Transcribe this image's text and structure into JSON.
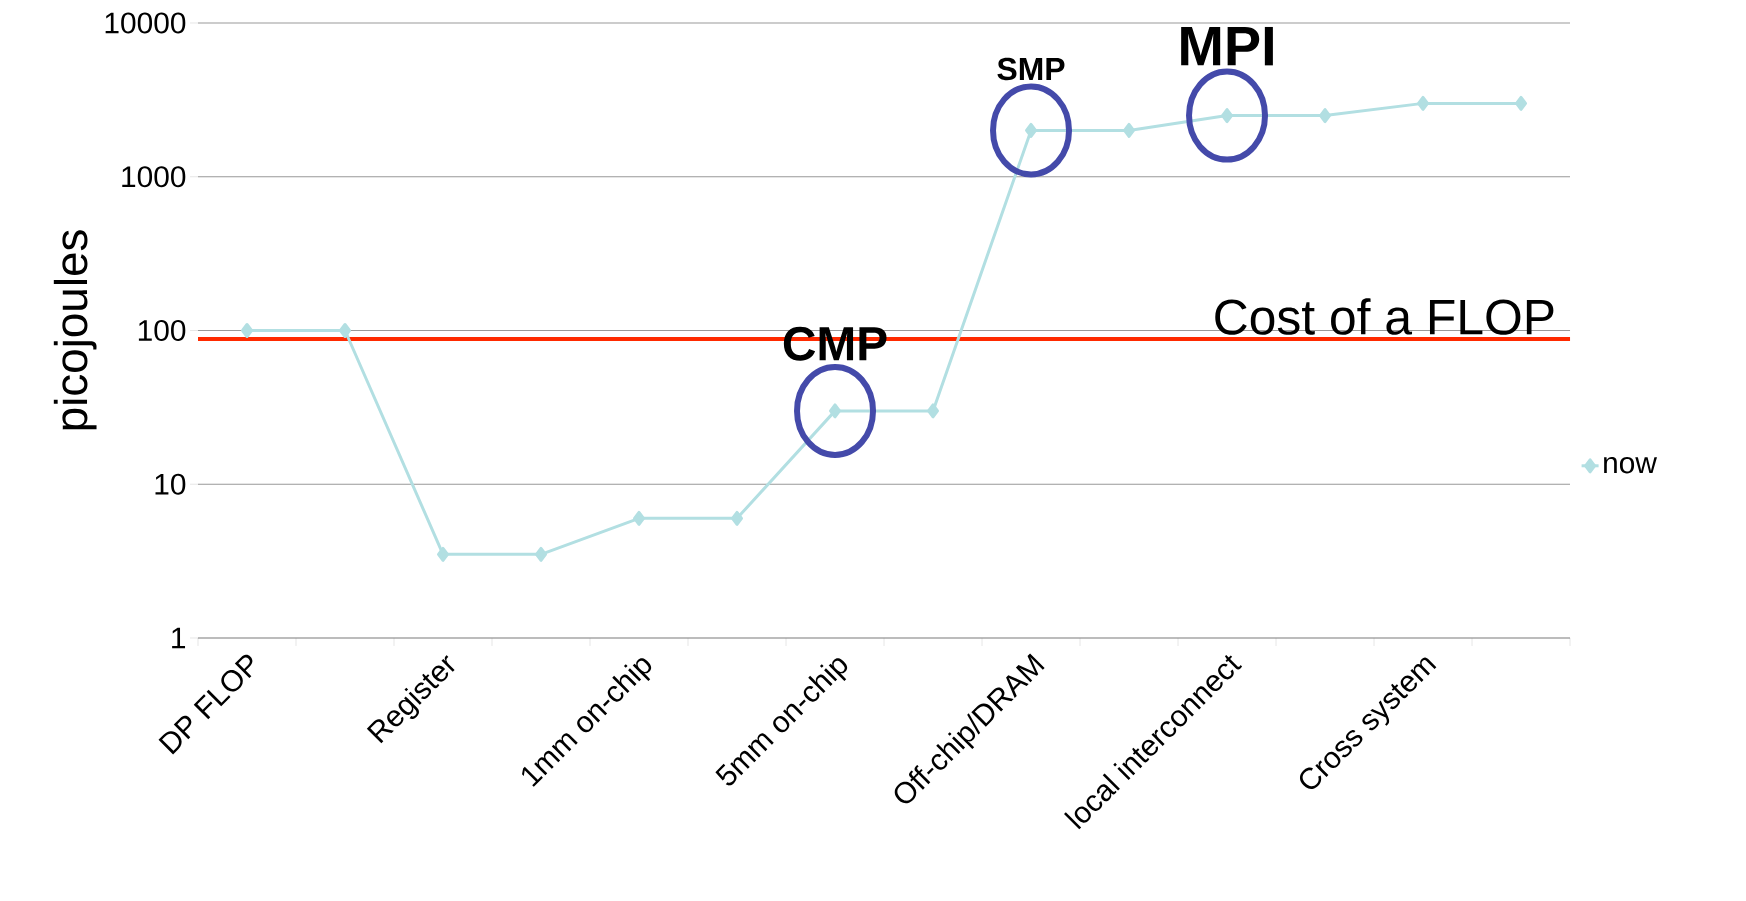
{
  "chart_data": {
    "type": "line",
    "ylabel": "picojoules",
    "categories": [
      "DP FLOP",
      null,
      "Register",
      null,
      "1mm on-chip",
      null,
      "5mm on-chip",
      null,
      "Off-chip/DRAM",
      null,
      "local interconnect",
      null,
      "Cross system",
      null
    ],
    "series": [
      {
        "name": "now",
        "color": "#b2dfe2",
        "values": [
          100,
          100,
          3.5,
          3.5,
          6,
          6,
          30,
          30,
          2000,
          2000,
          2500,
          2500,
          3000,
          3000
        ]
      }
    ],
    "log": true,
    "ylim": [
      1,
      10000
    ],
    "yticks": [
      1,
      10,
      100,
      1000,
      10000
    ],
    "grid": "y",
    "legend": "right",
    "marker": "diamond",
    "line_style": "solid",
    "ref_lines": [
      {
        "axis": "y",
        "value": 88,
        "label": "Cost of a FLOP",
        "color": "#ff2a00"
      }
    ],
    "annotations": [
      {
        "text": "CMP",
        "y": 30
      },
      {
        "text": "SMP",
        "y": 2000
      },
      {
        "text": "MPI",
        "y": 2500
      }
    ]
  }
}
